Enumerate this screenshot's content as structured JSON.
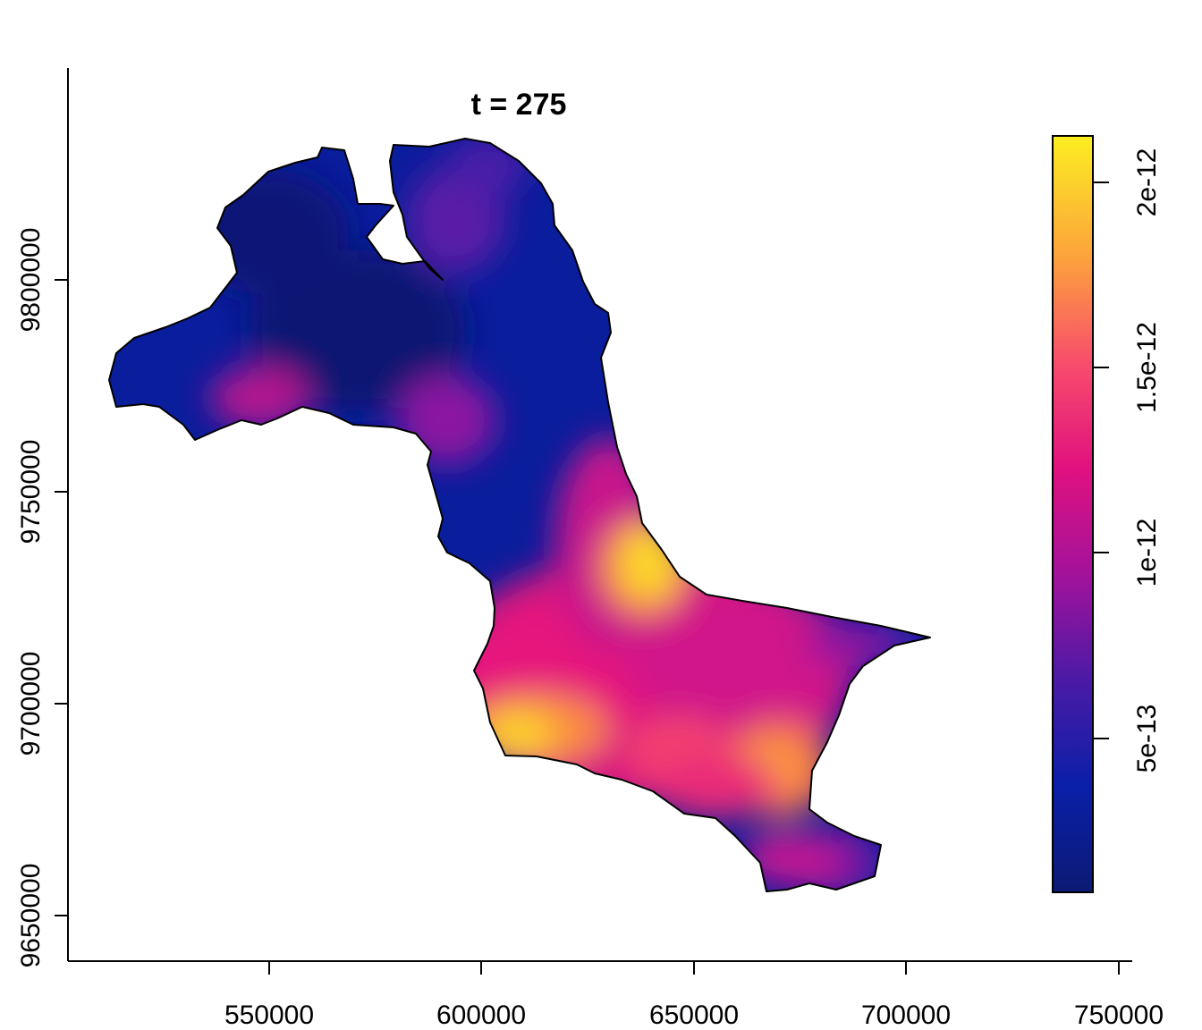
{
  "plot": {
    "title": "t = 275"
  },
  "x_axis": {
    "ticks": [
      "550000",
      "600000",
      "650000",
      "700000",
      "750000"
    ]
  },
  "y_axis": {
    "ticks": [
      "9650000",
      "9700000",
      "9750000",
      "9800000"
    ]
  },
  "legend": {
    "ticks": [
      "5e-13",
      "1e-12",
      "1.5e-12",
      "2e-12"
    ],
    "palette": [
      "#0d1a7a",
      "#0a1fa8",
      "#7a10a8",
      "#e0117f",
      "#f75a6a",
      "#fca83a",
      "#fcee21"
    ]
  },
  "map_colors": {
    "low": "#0a1d9c",
    "low_deep": "#061578",
    "mid_purple": "#6a14a8",
    "magenta": "#d9137f",
    "pink": "#f23a74",
    "orange": "#fb8c3f",
    "yellow": "#fcd72a"
  }
}
